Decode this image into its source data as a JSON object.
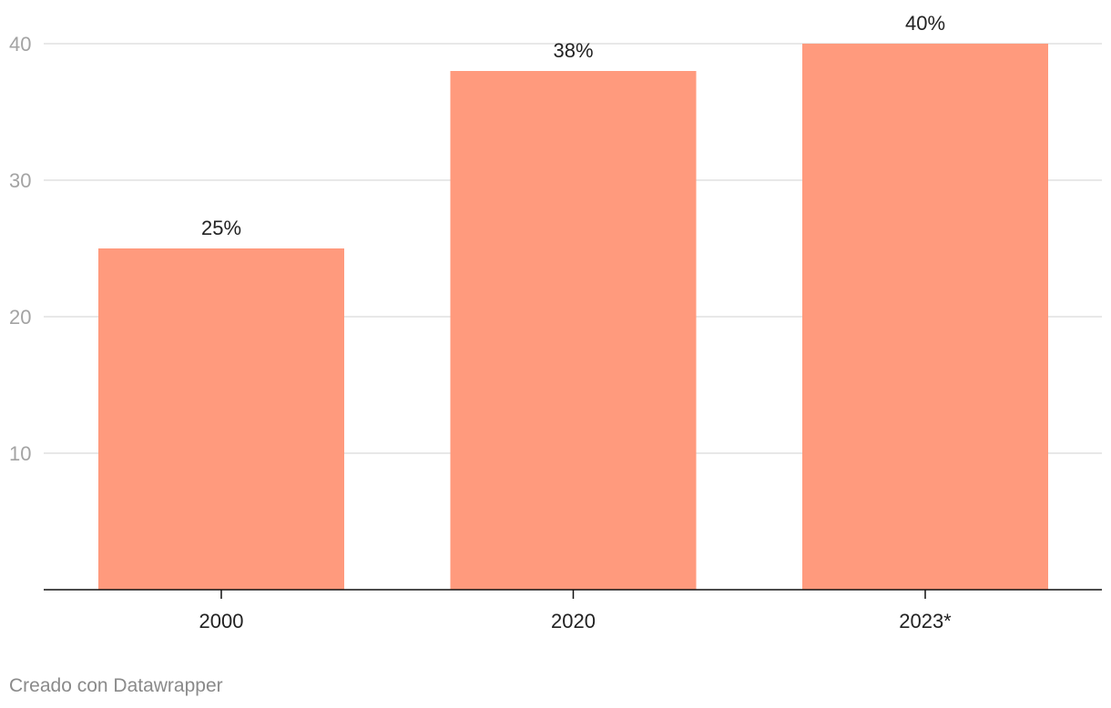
{
  "chart_data": {
    "type": "bar",
    "categories": [
      "2000",
      "2020",
      "2023*"
    ],
    "values": [
      25,
      38,
      40
    ],
    "data_labels": [
      "25%",
      "38%",
      "40%"
    ],
    "y_ticks": [
      10,
      20,
      30,
      40
    ],
    "ylim": [
      0,
      40
    ],
    "grid": true,
    "bar_color": "#ff9a7d"
  },
  "footer": {
    "credit": "Creado con Datawrapper"
  }
}
